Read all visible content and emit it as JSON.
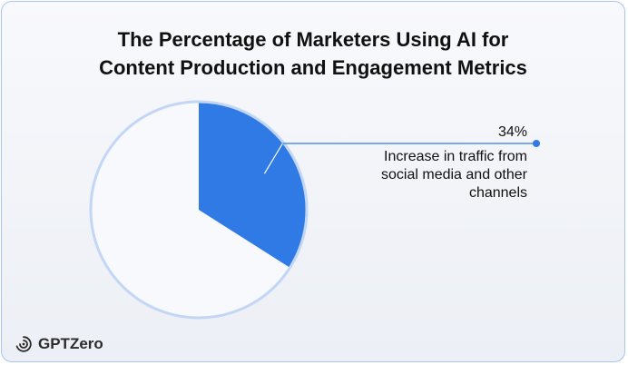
{
  "title_lines": [
    "The Percentage of Marketers Using AI for",
    "Content Production and Engagement Metrics"
  ],
  "brand": {
    "name": "GPTZero",
    "logo_icon": "gptzero-logo-icon"
  },
  "colors": {
    "slice": "#2f7ae5",
    "remainder": "#f8f9fc",
    "ring": "#c3d6f6",
    "leader": "#2f7ae5",
    "text": "#111111"
  },
  "chart_data": {
    "type": "pie",
    "slices": [
      {
        "value": 34,
        "value_label": "34%",
        "label_lines": [
          "Increase in traffic from",
          "social media and other",
          "channels"
        ]
      }
    ],
    "remainder_value": 66
  }
}
